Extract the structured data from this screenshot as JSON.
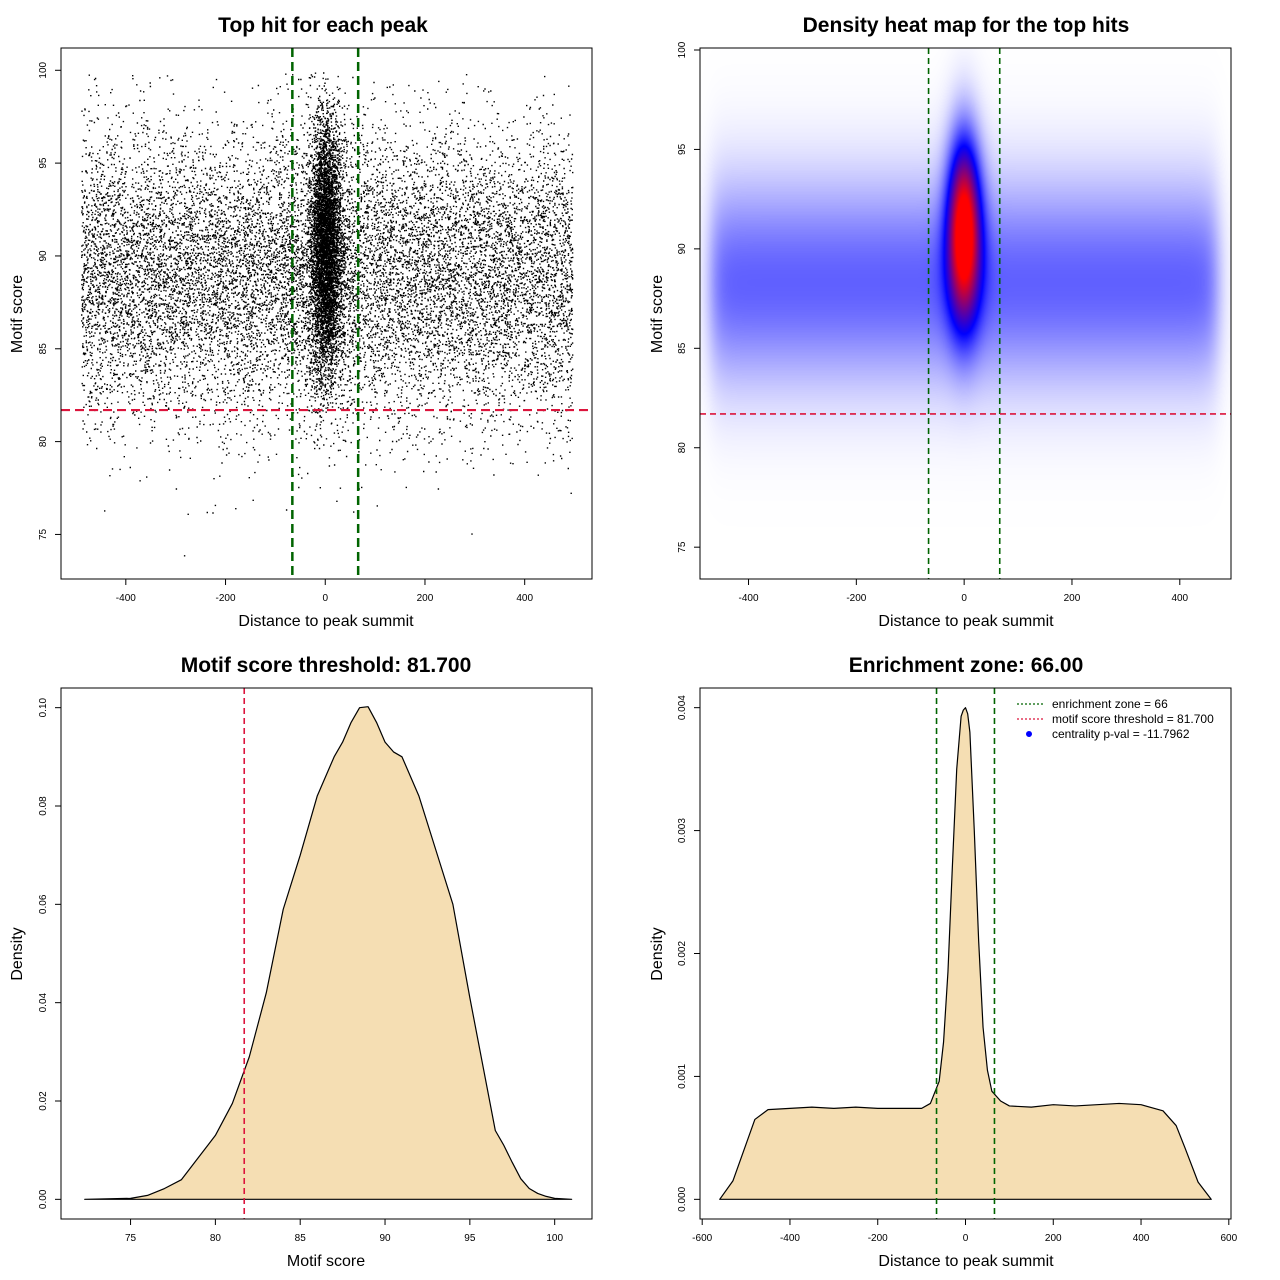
{
  "colors": {
    "points": "#000000",
    "zone_line": "#006400",
    "threshold_line": "#dc143c",
    "density_fill": "#f5deb3",
    "heat_low": "#ffffff",
    "heat_mid": "#0000ff",
    "heat_high": "#ff0000",
    "centrality_marker": "#0000ff"
  },
  "chart_data": [
    {
      "type": "scatter",
      "title": "Top hit for each peak",
      "xlabel": "Distance to peak summit",
      "ylabel": "Motif score",
      "xlim": [
        -530,
        535
      ],
      "ylim": [
        72.6,
        101.2
      ],
      "xticks": [
        -400,
        -200,
        0,
        200,
        400
      ],
      "yticks": [
        75,
        80,
        85,
        90,
        95,
        100
      ],
      "vlines": [
        -66,
        66
      ],
      "hline": 81.7,
      "point_range_x": [
        -490,
        495
      ],
      "score_peak": 89,
      "grid": false
    },
    {
      "type": "heatmap",
      "title": "Density heat map for the top hits",
      "xlabel": "Distance to peak summit",
      "ylabel": "Motif score",
      "xlim": [
        -490,
        495
      ],
      "ylim": [
        73.4,
        100.1
      ],
      "xticks": [
        -400,
        -200,
        0,
        200,
        400
      ],
      "yticks": [
        75,
        80,
        85,
        90,
        95,
        100
      ],
      "vlines": [
        -66,
        66
      ],
      "hline": 81.7,
      "hotspot": {
        "x": 0,
        "y": 91
      },
      "grid": false
    },
    {
      "type": "area",
      "title": "Motif score threshold: 81.700",
      "xlabel": "Motif score",
      "ylabel": "Density",
      "xlim": [
        70.9,
        102.2
      ],
      "ylim": [
        -0.004,
        0.104
      ],
      "xticks": [
        75,
        80,
        85,
        90,
        95,
        100
      ],
      "yticks": [
        0.0,
        0.02,
        0.04,
        0.06,
        0.08,
        0.1
      ],
      "ytick_labels": [
        "0.00",
        "0.02",
        "0.04",
        "0.06",
        "0.08",
        "0.10"
      ],
      "vline": 81.7,
      "x": [
        72.3,
        75,
        76,
        77,
        78,
        79,
        80,
        81,
        82,
        83,
        84,
        85,
        86,
        87,
        87.5,
        88,
        88.5,
        89,
        89.5,
        90,
        90.5,
        91,
        92,
        93,
        94,
        95,
        96,
        96.5,
        97,
        97.5,
        98,
        98.5,
        99,
        99.5,
        100,
        101
      ],
      "y": [
        0.0,
        0.0002,
        0.0008,
        0.0022,
        0.004,
        0.0085,
        0.013,
        0.0195,
        0.029,
        0.042,
        0.059,
        0.07,
        0.082,
        0.09,
        0.093,
        0.097,
        0.1,
        0.1002,
        0.097,
        0.093,
        0.091,
        0.09,
        0.082,
        0.071,
        0.06,
        0.041,
        0.023,
        0.014,
        0.011,
        0.0075,
        0.0042,
        0.0022,
        0.0012,
        0.0006,
        0.0002,
        0.0
      ],
      "grid": false
    },
    {
      "type": "area",
      "title": "Enrichment zone: 66.00",
      "xlabel": "Distance to peak summit",
      "ylabel": "Density",
      "xlim": [
        -605,
        605
      ],
      "ylim": [
        -0.00016,
        0.00416
      ],
      "xticks": [
        -600,
        -400,
        -200,
        0,
        200,
        400,
        600
      ],
      "yticks": [
        0.0,
        0.001,
        0.002,
        0.003,
        0.004
      ],
      "ytick_labels": [
        "0.000",
        "0.001",
        "0.002",
        "0.003",
        "0.004"
      ],
      "vlines": [
        -66,
        66
      ],
      "x": [
        -560,
        -530,
        -500,
        -480,
        -450,
        -400,
        -350,
        -300,
        -250,
        -200,
        -150,
        -100,
        -80,
        -60,
        -50,
        -40,
        -30,
        -20,
        -10,
        -5,
        0,
        5,
        10,
        20,
        30,
        40,
        50,
        60,
        80,
        100,
        150,
        200,
        250,
        300,
        350,
        400,
        450,
        480,
        500,
        530,
        560
      ],
      "y": [
        0.0,
        0.00015,
        0.00045,
        0.00065,
        0.00073,
        0.00074,
        0.00075,
        0.00074,
        0.00075,
        0.00074,
        0.00074,
        0.00074,
        0.00078,
        0.00096,
        0.00128,
        0.00185,
        0.0027,
        0.0035,
        0.00393,
        0.00398,
        0.004,
        0.00395,
        0.0038,
        0.003,
        0.0021,
        0.0014,
        0.00105,
        0.00088,
        0.0008,
        0.00076,
        0.00075,
        0.00077,
        0.00076,
        0.00077,
        0.00078,
        0.00077,
        0.00072,
        0.0006,
        0.00042,
        0.00014,
        0.0
      ],
      "legend": {
        "position": "top-right",
        "entries": [
          {
            "label": "enrichment zone = 66",
            "kind": "line",
            "color": "#006400"
          },
          {
            "label": "motif score threshold = 81.700",
            "kind": "line",
            "color": "#dc143c"
          },
          {
            "label": "centrality p-val = -11.7962",
            "kind": "point",
            "color": "#0000ff"
          }
        ]
      },
      "grid": false
    }
  ]
}
